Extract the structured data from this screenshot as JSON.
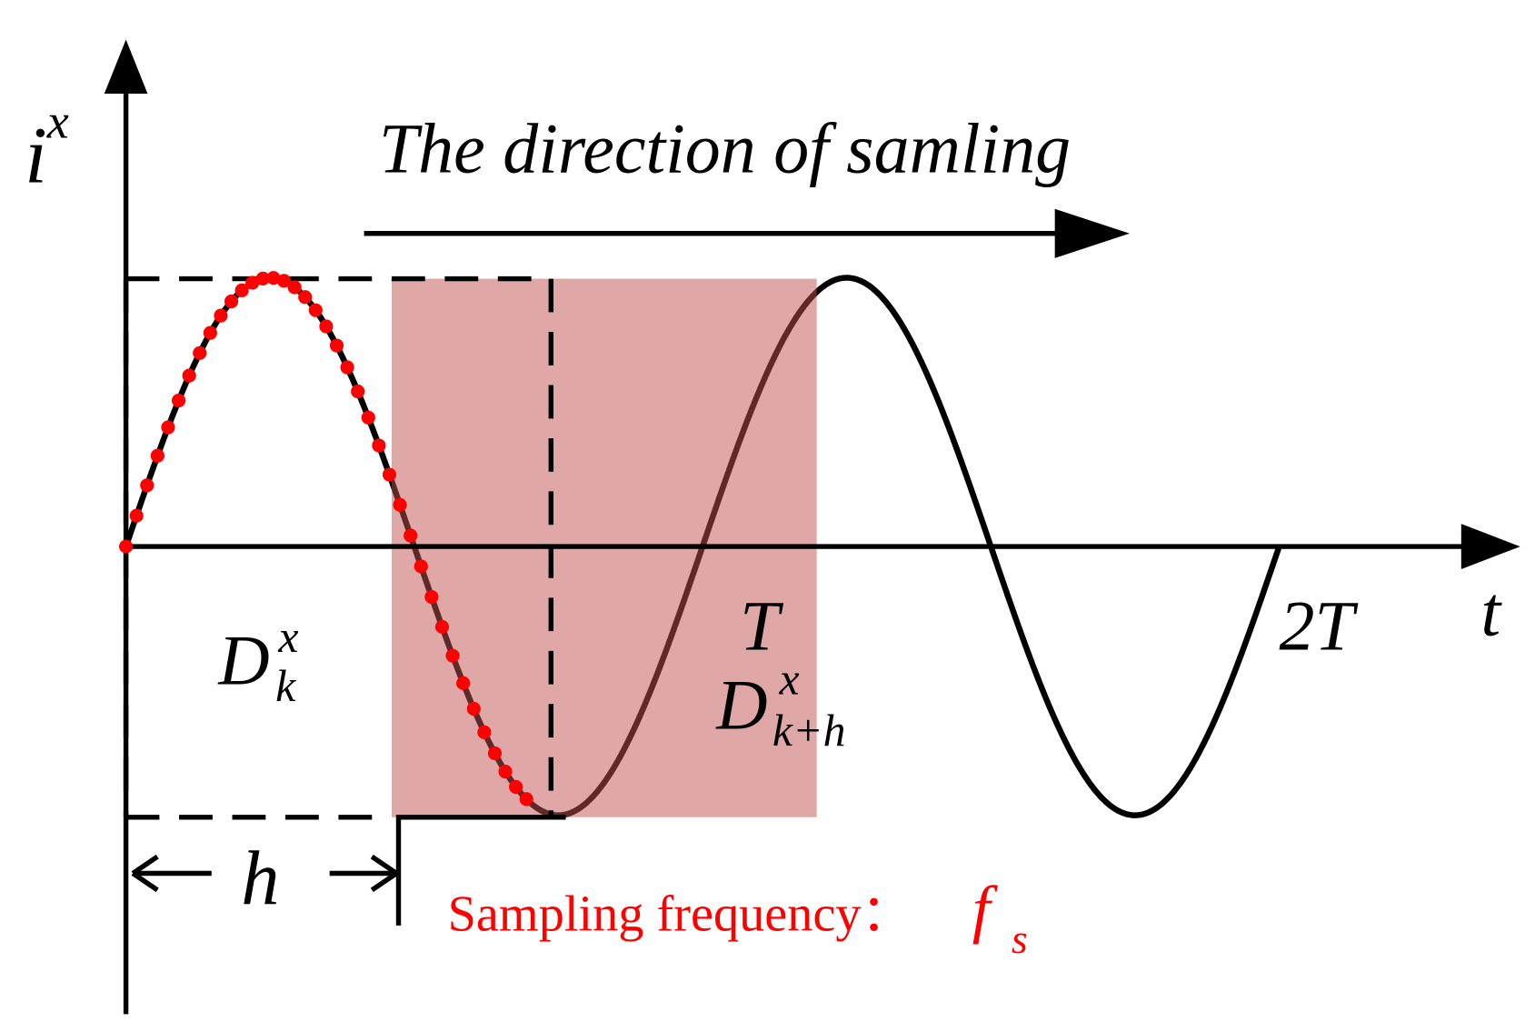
{
  "axes": {
    "y_label": {
      "base": "i",
      "sup": "x"
    },
    "x_label": "t"
  },
  "annotations": {
    "direction": "The direction of samling",
    "period": "T",
    "double_period": "2T",
    "window_start": {
      "base": "D",
      "sub": "k",
      "sup": "x"
    },
    "window_next": {
      "base": "D",
      "sub": "k+h",
      "sup": "x"
    },
    "step": "h",
    "sampling": {
      "text": "Sampling frequency：",
      "symbol": "f",
      "sub": "s"
    }
  }
}
